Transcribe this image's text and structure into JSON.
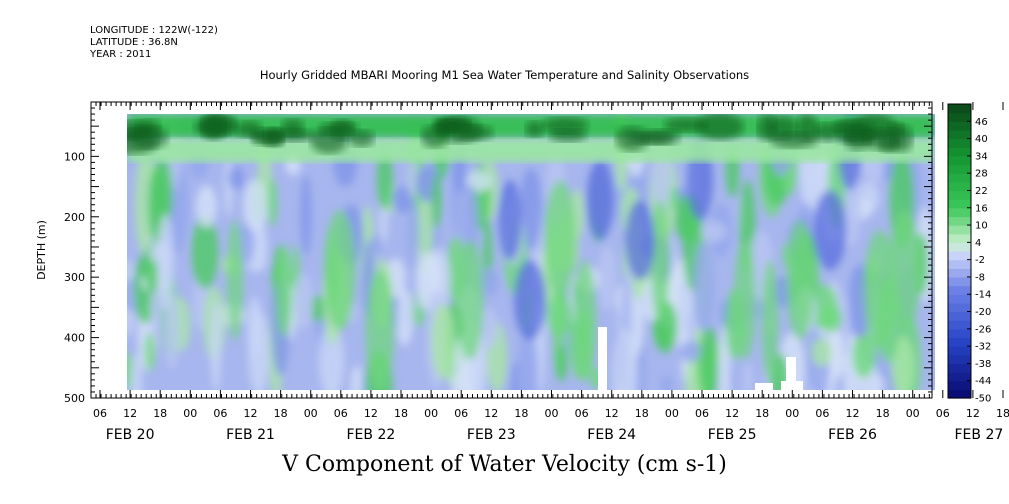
{
  "header": {
    "longitude": "LONGITUDE : 122W(-122)",
    "latitude": "LATITUDE : 36.8N",
    "year": "YEAR : 2011"
  },
  "chart_data": {
    "type": "heatmap",
    "title": "Hourly Gridded MBARI Mooring M1 Sea Water Temperature and Salinity Observations",
    "xlabel": "V Component of Water Velocity (cm s-1)",
    "ylabel": "DEPTH (m)",
    "x_hour_ticks": [
      "06",
      "12",
      "18",
      "00",
      "06",
      "12",
      "18",
      "00",
      "06",
      "12",
      "18",
      "00",
      "06",
      "12",
      "18",
      "00",
      "06",
      "12",
      "18",
      "00",
      "06",
      "12",
      "18",
      "00",
      "06",
      "12",
      "18",
      "00",
      "06",
      "12",
      "18",
      "00"
    ],
    "x_date_labels": [
      "FEB 20",
      "FEB 21",
      "FEB 22",
      "FEB 23",
      "FEB 24",
      "FEB 25",
      "FEB 26",
      "FEB 27"
    ],
    "y_ticks": [
      100,
      200,
      300,
      400,
      500
    ],
    "ylim": [
      500,
      10
    ],
    "colorbar_labels": [
      46,
      40,
      34,
      28,
      22,
      16,
      10,
      4,
      -2,
      -8,
      -14,
      -20,
      -26,
      -32,
      -38,
      -44,
      -50
    ],
    "colorbar_range": [
      -50,
      52
    ],
    "colorbar_step": 3,
    "colors": {
      "strong_positive": "#0b5e1e",
      "positive": "#2fbf4a",
      "weak_positive": "#9be6a2",
      "near_zero": "#c9d8f5",
      "negative": "#7f95e8",
      "strong_negative": "#1f2fa0"
    },
    "depth_bands": [
      {
        "depth_range": [
          20,
          70
        ],
        "value": 30
      },
      {
        "depth_range": [
          70,
          110
        ],
        "value": 12
      },
      {
        "depth_range": [
          110,
          490
        ],
        "value": -8
      }
    ]
  }
}
